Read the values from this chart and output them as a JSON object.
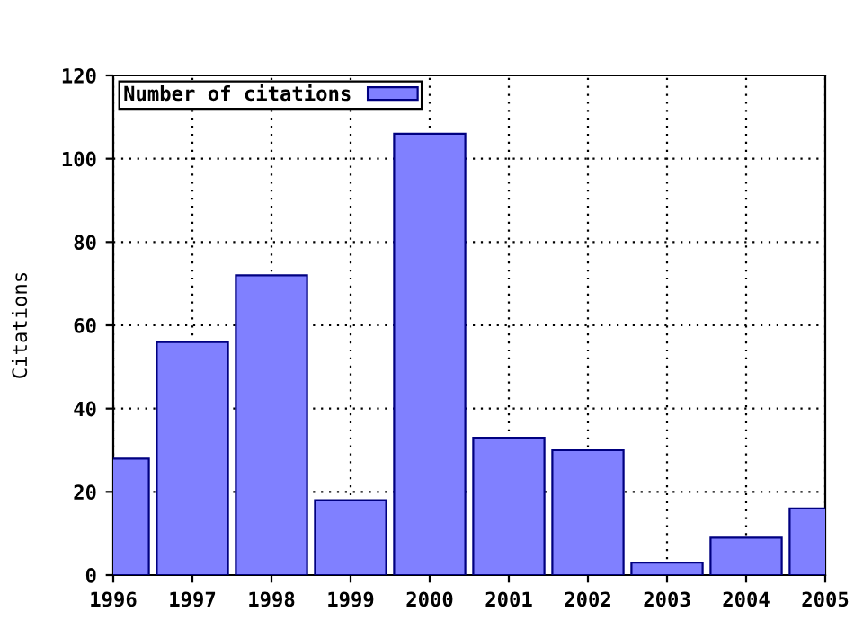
{
  "chart_data": {
    "type": "bar",
    "ylabel": "Citations",
    "x": [
      1996,
      1997,
      1998,
      1999,
      2000,
      2001,
      2002,
      2003,
      2004,
      2005
    ],
    "series": [
      {
        "name": "Number of citations",
        "color": "#8080ff",
        "values": [
          28,
          56,
          72,
          18,
          106,
          33,
          30,
          3,
          9,
          16
        ]
      }
    ],
    "xlim": [
      1996,
      2005
    ],
    "xticks": [
      1996,
      1997,
      1998,
      1999,
      2000,
      2001,
      2002,
      2003,
      2004,
      2005
    ],
    "ylim": [
      0,
      120
    ],
    "yticks": [
      0,
      20,
      40,
      60,
      80,
      100,
      120
    ],
    "grid": true,
    "legend": "top left"
  }
}
